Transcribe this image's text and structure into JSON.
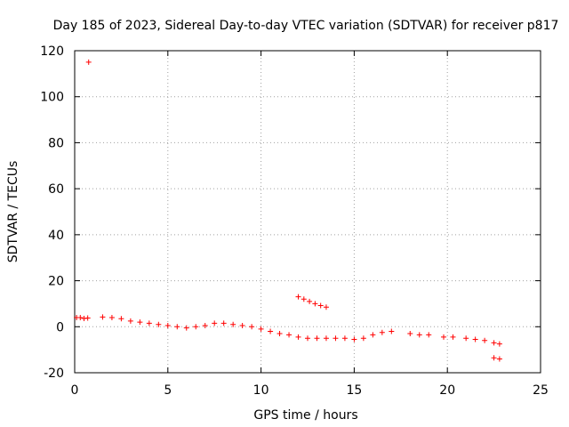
{
  "chart_data": {
    "type": "scatter",
    "title": "Day 185 of 2023, Sidereal Day-to-day VTEC variation (SDTVAR) for receiver p817",
    "xlabel": "GPS time / hours",
    "ylabel": "SDTVAR / TECUs",
    "xlim": [
      0,
      25
    ],
    "ylim": [
      -20,
      120
    ],
    "xticks": [
      0,
      5,
      10,
      15,
      20,
      25
    ],
    "yticks": [
      -20,
      0,
      20,
      40,
      60,
      80,
      100,
      120
    ],
    "grid": true,
    "marker": "+",
    "series": [
      {
        "name": "SDTVAR",
        "color": "#ff0000",
        "points": [
          [
            0.1,
            4.0
          ],
          [
            0.3,
            4.0
          ],
          [
            0.5,
            3.6
          ],
          [
            0.7,
            3.8
          ],
          [
            0.75,
            115
          ],
          [
            1.5,
            4.2
          ],
          [
            2.0,
            4.0
          ],
          [
            2.5,
            3.5
          ],
          [
            3.0,
            2.5
          ],
          [
            3.5,
            2.0
          ],
          [
            4.0,
            1.5
          ],
          [
            4.5,
            1.0
          ],
          [
            5.0,
            0.5
          ],
          [
            5.5,
            0.0
          ],
          [
            6.0,
            -0.5
          ],
          [
            6.5,
            0.0
          ],
          [
            7.0,
            0.5
          ],
          [
            7.5,
            1.5
          ],
          [
            8.0,
            1.5
          ],
          [
            8.5,
            1.0
          ],
          [
            9.0,
            0.5
          ],
          [
            9.5,
            0.0
          ],
          [
            10.0,
            -1.0
          ],
          [
            10.5,
            -2.0
          ],
          [
            11.0,
            -3.0
          ],
          [
            11.5,
            -3.5
          ],
          [
            12.0,
            -4.5
          ],
          [
            12.5,
            -5.0
          ],
          [
            13.0,
            -5.0
          ],
          [
            13.5,
            -5.0
          ],
          [
            14.0,
            -5.0
          ],
          [
            14.5,
            -5.0
          ],
          [
            15.0,
            -5.5
          ],
          [
            15.5,
            -5.0
          ],
          [
            16.0,
            -3.5
          ],
          [
            16.5,
            -2.5
          ],
          [
            17.0,
            -2.0
          ],
          [
            18.0,
            -3.0
          ],
          [
            18.5,
            -3.5
          ],
          [
            19.0,
            -3.5
          ],
          [
            19.8,
            -4.5
          ],
          [
            20.3,
            -4.5
          ],
          [
            21.0,
            -5.0
          ],
          [
            21.5,
            -5.5
          ],
          [
            22.0,
            -6.0
          ],
          [
            22.5,
            -7.0
          ],
          [
            22.8,
            -7.5
          ],
          [
            12.0,
            13.0
          ],
          [
            12.3,
            12.0
          ],
          [
            12.6,
            11.0
          ],
          [
            12.9,
            10.0
          ],
          [
            13.2,
            9.2
          ],
          [
            13.5,
            8.5
          ],
          [
            22.5,
            -13.5
          ],
          [
            22.8,
            -14.0
          ]
        ]
      }
    ]
  }
}
